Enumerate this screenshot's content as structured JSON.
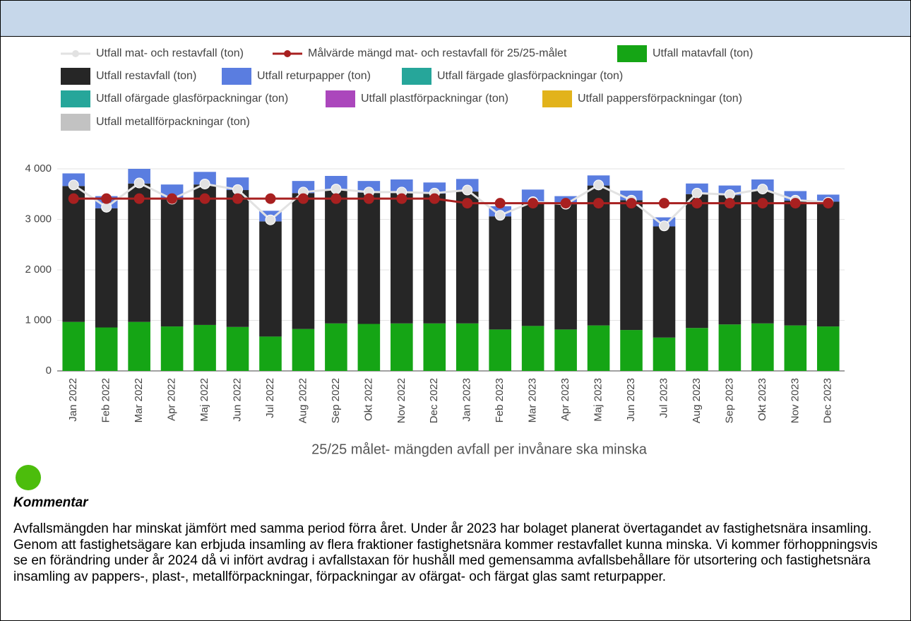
{
  "chart_data": {
    "type": "bar",
    "title": "25/25 målet- mängden avfall per invånare ska minska",
    "categories": [
      "Jan 2022",
      "Feb 2022",
      "Mar 2022",
      "Apr 2022",
      "Maj 2022",
      "Jun 2022",
      "Jul 2022",
      "Aug 2022",
      "Sep 2022",
      "Okt 2022",
      "Nov 2022",
      "Dec 2022",
      "Jan 2023",
      "Feb 2023",
      "Mar 2023",
      "Apr 2023",
      "Maj 2023",
      "Jun 2023",
      "Jul 2023",
      "Aug 2023",
      "Sep 2023",
      "Okt 2023",
      "Nov 2023",
      "Dec 2023"
    ],
    "ylim": [
      0,
      4000
    ],
    "yticks": [
      0,
      {
        "value": 1000,
        "label": "1 000"
      },
      {
        "value": 2000,
        "label": "2 000"
      },
      {
        "value": 3000,
        "label": "3 000"
      },
      {
        "value": 4000,
        "label": "4 000"
      }
    ],
    "grid": true,
    "stacked": true,
    "series": [
      {
        "name": "Utfall mat- och restavfall (ton)",
        "type": "line",
        "color": "#e2e2e2",
        "values": [
          3680,
          3240,
          3720,
          3400,
          3700,
          3590,
          2990,
          3540,
          3600,
          3540,
          3540,
          3520,
          3580,
          3080,
          3350,
          3300,
          3680,
          3380,
          2870,
          3520,
          3490,
          3600,
          3380,
          3340
        ]
      },
      {
        "name": "Målvärde mängd mat- och restavfall för 25/25-målet",
        "type": "line",
        "color": "#a82020",
        "values": [
          3410,
          3410,
          3410,
          3410,
          3410,
          3410,
          3410,
          3410,
          3410,
          3410,
          3410,
          3410,
          3320,
          3320,
          3320,
          3320,
          3320,
          3320,
          3320,
          3320,
          3320,
          3320,
          3320,
          3320
        ]
      },
      {
        "name": "Utfall matavfall (ton)",
        "type": "bar",
        "color": "#15a515",
        "values": [
          970,
          860,
          970,
          880,
          910,
          870,
          680,
          830,
          940,
          930,
          940,
          940,
          940,
          820,
          890,
          820,
          900,
          810,
          660,
          850,
          920,
          940,
          900,
          880
        ]
      },
      {
        "name": "Utfall restavfall (ton)",
        "type": "bar",
        "color": "#262626",
        "values": [
          2690,
          2360,
          2740,
          2520,
          2780,
          2710,
          2280,
          2690,
          2650,
          2600,
          2600,
          2570,
          2610,
          2240,
          2440,
          2480,
          2770,
          2570,
          2200,
          2650,
          2560,
          2620,
          2470,
          2470
        ]
      },
      {
        "name": "Utfall returpapper (ton)",
        "type": "bar",
        "color": "#5a7de0",
        "values": [
          250,
          240,
          290,
          290,
          250,
          250,
          210,
          240,
          270,
          230,
          250,
          220,
          250,
          200,
          260,
          160,
          200,
          190,
          180,
          210,
          190,
          230,
          190,
          140
        ]
      },
      {
        "name": "Utfall färgade glasförpackningar (ton)",
        "type": "bar",
        "color": "#26a69a",
        "values": [
          0,
          0,
          0,
          0,
          0,
          0,
          0,
          0,
          0,
          0,
          0,
          0,
          0,
          0,
          0,
          0,
          0,
          0,
          0,
          0,
          0,
          0,
          0,
          0
        ]
      },
      {
        "name": "Utfall ofärgade glasförpackningar (ton)",
        "type": "bar",
        "color": "#26a69a",
        "values": [
          0,
          0,
          0,
          0,
          0,
          0,
          0,
          0,
          0,
          0,
          0,
          0,
          0,
          0,
          0,
          0,
          0,
          0,
          0,
          0,
          0,
          0,
          0,
          0
        ]
      },
      {
        "name": "Utfall plastförpackningar (ton)",
        "type": "bar",
        "color": "#ab47bc",
        "values": [
          0,
          0,
          0,
          0,
          0,
          0,
          0,
          0,
          0,
          0,
          0,
          0,
          0,
          0,
          0,
          0,
          0,
          0,
          0,
          0,
          0,
          0,
          0,
          0
        ]
      },
      {
        "name": "Utfall pappersförpackningar (ton)",
        "type": "bar",
        "color": "#e2b31b",
        "values": [
          0,
          0,
          0,
          0,
          0,
          0,
          0,
          0,
          0,
          0,
          0,
          0,
          0,
          0,
          0,
          0,
          0,
          0,
          0,
          0,
          0,
          0,
          0,
          0
        ]
      },
      {
        "name": "Utfall metallförpackningar (ton)",
        "type": "bar",
        "color": "#c2c2c2",
        "values": [
          0,
          0,
          0,
          0,
          0,
          0,
          0,
          0,
          0,
          0,
          0,
          0,
          0,
          0,
          0,
          0,
          0,
          0,
          0,
          0,
          0,
          0,
          0,
          0
        ]
      }
    ]
  },
  "comment": {
    "heading": "Kommentar",
    "text": "Avfallsmängden har minskat jämfört med samma period förra året. Under år 2023 har bolaget planerat övertagandet av fastighetsnära insamling. Genom att fastighetsägare kan erbjuda insamling av flera fraktioner fastighetsnära kommer restavfallet kunna minska. Vi kommer förhoppningsvis se en förändring under år 2024 då vi infört avdrag i avfallstaxan för hushåll med gemensamma avfallsbehållare för utsortering och fastighetsnära insamling av pappers-, plast-, metallförpackningar, förpackningar av ofärgat- och färgat glas samt returpapper."
  }
}
